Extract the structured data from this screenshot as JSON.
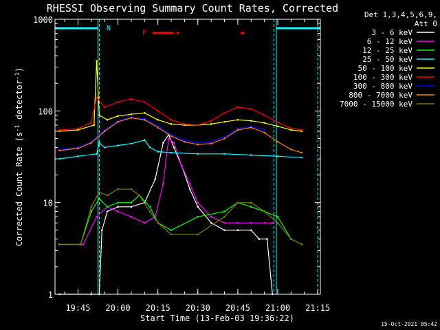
{
  "chart_data": {
    "type": "line",
    "title": "RHESSI Observing Summary Count Rates, Corrected",
    "xlabel": "Start Time (13-Feb-03 19:36:22)",
    "ylabel_main": "Corrected Count Rate (s",
    "ylabel_sup1": "-1",
    "ylabel_mid": " detector",
    "ylabel_sup2": "-1",
    "ylabel_end": ")",
    "yscale": "log",
    "ylim": [
      1,
      1000
    ],
    "xlim": [
      "19:36:22",
      "21:16:00"
    ],
    "ytick_labels": [
      "1",
      "10",
      "100",
      "1000"
    ],
    "ytick_values": [
      1,
      10,
      100,
      1000
    ],
    "xtick_labels": [
      "19:45",
      "20:00",
      "20:15",
      "20:30",
      "20:45",
      "21:00",
      "21:15"
    ],
    "legend_header": [
      "Det 1,3,4,5,6,9,",
      "Att 0"
    ],
    "legend_position": "top-right",
    "annotations": {
      "night_label": "N",
      "flare_label": "F",
      "timestamp": "15-Oct-2021 05:42"
    },
    "colors": {
      "cyan": "#00ffff",
      "flare": "#ff0000"
    },
    "series": [
      {
        "name": "3 - 6 keV",
        "color": "#ffffff",
        "x": [
          "19:38",
          "19:50",
          "19:53",
          "19:54",
          "19:56",
          "20:00",
          "20:05",
          "20:10",
          "20:14",
          "20:17",
          "20:19",
          "20:21",
          "20:24",
          "20:27",
          "20:30",
          "20:35",
          "20:40",
          "20:45",
          "20:50",
          "20:53",
          "20:56",
          "20:58"
        ],
        "y": [
          1,
          1,
          1,
          5,
          8,
          9,
          9,
          10,
          18,
          45,
          55,
          40,
          25,
          14,
          9,
          6,
          5,
          5,
          5,
          4,
          4,
          1
        ]
      },
      {
        "name": "6 - 12 keV",
        "color": "#ff00ff",
        "x": [
          "19:38",
          "19:47",
          "19:52",
          "19:56",
          "20:00",
          "20:05",
          "20:10",
          "20:14",
          "20:17",
          "20:19",
          "20:21",
          "20:24",
          "20:27",
          "20:30",
          "20:35",
          "20:40",
          "20:45",
          "20:50",
          "20:55",
          "20:58"
        ],
        "y": [
          3.5,
          3.5,
          7,
          9,
          8,
          7,
          6,
          7,
          16,
          50,
          45,
          25,
          16,
          10,
          7,
          6,
          6,
          6,
          6,
          6
        ]
      },
      {
        "name": "12 - 25 keV",
        "color": "#00ff00",
        "x": [
          "19:38",
          "19:46",
          "19:50",
          "19:53",
          "19:56",
          "20:00",
          "20:05",
          "20:08",
          "20:12",
          "20:15",
          "20:20",
          "20:30",
          "20:40",
          "20:45",
          "20:50",
          "20:55",
          "21:00",
          "21:05",
          "21:09"
        ],
        "y": [
          3.5,
          3.5,
          8,
          11,
          9,
          10,
          10,
          12,
          9,
          6,
          5,
          7,
          8,
          10,
          9,
          8,
          7,
          4,
          3.5
        ]
      },
      {
        "name": "25 - 50 keV",
        "color": "#00ffff",
        "x": [
          "19:38",
          "19:45",
          "19:52",
          "19:53",
          "19:55",
          "20:00",
          "20:05",
          "20:10",
          "20:12",
          "20:15",
          "20:20",
          "20:30",
          "20:40",
          "20:50",
          "21:00",
          "21:09"
        ],
        "y": [
          30,
          32,
          34,
          45,
          40,
          42,
          44,
          48,
          40,
          36,
          35,
          34,
          34,
          33,
          32,
          31
        ]
      },
      {
        "name": "50 - 100 keV",
        "color": "#ffff00",
        "x": [
          "19:38",
          "19:45",
          "19:51",
          "19:52",
          "19:53",
          "19:56",
          "20:00",
          "20:05",
          "20:10",
          "20:15",
          "20:20",
          "20:25",
          "20:30",
          "20:35",
          "20:40",
          "20:45",
          "20:50",
          "20:55",
          "21:00",
          "21:05",
          "21:09"
        ],
        "y": [
          60,
          62,
          70,
          350,
          90,
          80,
          88,
          92,
          95,
          80,
          72,
          70,
          70,
          72,
          76,
          80,
          78,
          74,
          68,
          62,
          60
        ]
      },
      {
        "name": "100 - 300 keV",
        "color": "#ff0000",
        "x": [
          "19:38",
          "19:45",
          "19:50",
          "19:52",
          "19:55",
          "20:00",
          "20:05",
          "20:10",
          "20:15",
          "20:20",
          "20:25",
          "20:30",
          "20:35",
          "20:40",
          "20:45",
          "20:50",
          "20:55",
          "21:00",
          "21:05",
          "21:09"
        ],
        "y": [
          62,
          64,
          75,
          140,
          110,
          125,
          135,
          125,
          100,
          80,
          72,
          70,
          78,
          95,
          110,
          105,
          90,
          75,
          65,
          62
        ]
      },
      {
        "name": "300 - 800 keV",
        "color": "#0000ff",
        "x": [
          "19:38",
          "19:45",
          "19:50",
          "19:55",
          "20:00",
          "20:05",
          "20:10",
          "20:15",
          "20:20",
          "20:25",
          "20:30",
          "20:35",
          "20:40",
          "20:45",
          "20:50",
          "20:55"
        ],
        "y": [
          38,
          40,
          46,
          62,
          78,
          85,
          82,
          68,
          55,
          48,
          45,
          46,
          52,
          64,
          68,
          62
        ]
      },
      {
        "name": "800 - 7000 keV",
        "color": "#ff8000",
        "x": [
          "19:38",
          "19:45",
          "19:50",
          "19:55",
          "20:00",
          "20:05",
          "20:10",
          "20:15",
          "20:20",
          "20:25",
          "20:30",
          "20:35",
          "20:40",
          "20:45",
          "20:50",
          "20:55",
          "21:00",
          "21:05",
          "21:09"
        ],
        "y": [
          37,
          39,
          45,
          60,
          76,
          84,
          80,
          66,
          53,
          46,
          43,
          44,
          50,
          62,
          66,
          58,
          46,
          38,
          35
        ]
      },
      {
        "name": "7000 - 15000 keV",
        "color": "#808000",
        "x": [
          "19:38",
          "19:46",
          "19:50",
          "19:53",
          "19:56",
          "20:00",
          "20:05",
          "20:08",
          "20:12",
          "20:15",
          "20:20",
          "20:30",
          "20:40",
          "20:45",
          "20:50",
          "20:55",
          "21:00",
          "21:05",
          "21:09"
        ],
        "y": [
          3.5,
          3.5,
          9,
          13,
          12,
          14,
          14,
          12,
          8,
          6,
          4.5,
          4.5,
          7,
          10,
          10,
          8,
          6,
          4,
          3.5
        ]
      }
    ],
    "saa_bars": [
      {
        "start": "19:36:22",
        "end": "19:52:30"
      },
      {
        "start": "20:59:30",
        "end": "21:16:00"
      }
    ],
    "night_lines": [
      "19:53:00",
      "20:58:30",
      "21:15:00"
    ],
    "flare_bars": [
      {
        "start": "20:13:00",
        "end": "20:21:00"
      },
      {
        "start": "20:22:00",
        "end": "20:23:00"
      },
      {
        "start": "20:46:00",
        "end": "20:47:30"
      }
    ]
  }
}
